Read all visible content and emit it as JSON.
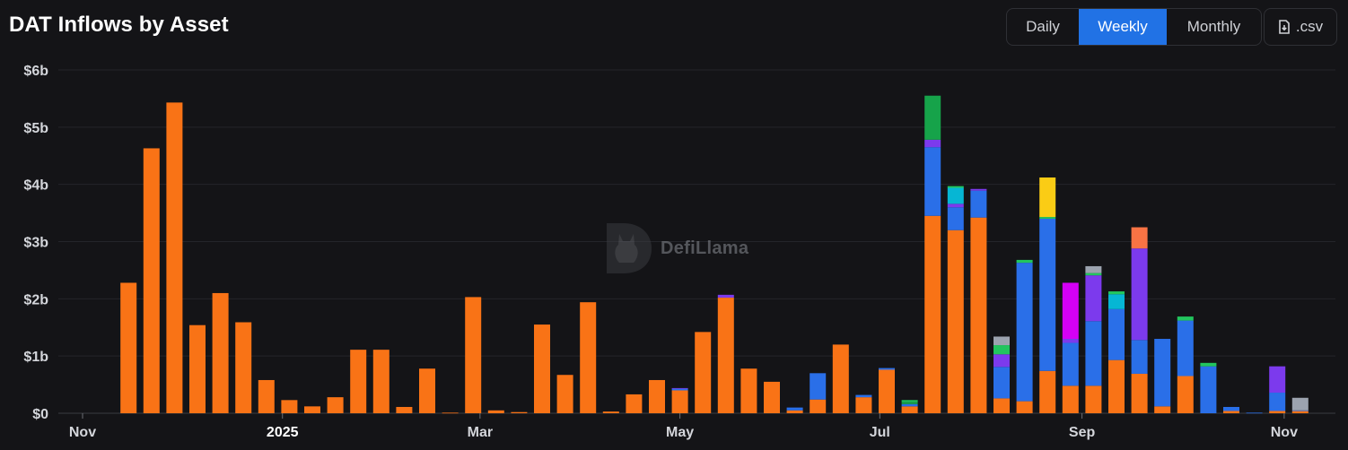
{
  "title": "DAT Inflows by Asset",
  "controls": {
    "daily_label": "Daily",
    "weekly_label": "Weekly",
    "monthly_label": "Monthly",
    "active": "Weekly",
    "csv_label": ".csv"
  },
  "watermark": "DefiLlama",
  "colors": {
    "background": "#141417",
    "accent": "#2172e5",
    "btc": "#f97316",
    "eth": "#2a6fe8",
    "sol": "#7c3aed",
    "teal": "#06b6d4",
    "green": "#16a34a",
    "lime": "#22c55e",
    "yellow": "#facc15",
    "magenta": "#d400f5",
    "coral": "#f97344",
    "gray": "#9ca3af"
  },
  "chart_data": {
    "type": "bar",
    "stacked": true,
    "title": "DAT Inflows by Asset",
    "y_unit": "$b",
    "ylim": [
      0,
      6
    ],
    "y_ticks": [
      "$0",
      "$1b",
      "$2b",
      "$3b",
      "$4b",
      "$5b",
      "$6b"
    ],
    "x_ticks": [
      {
        "label": "Nov",
        "bold": false,
        "week": 0
      },
      {
        "label": "2025",
        "bold": true,
        "week": 8.7
      },
      {
        "label": "Mar",
        "bold": false,
        "week": 17.3
      },
      {
        "label": "May",
        "bold": false,
        "week": 26
      },
      {
        "label": "Jul",
        "bold": false,
        "week": 34.7
      },
      {
        "label": "Sep",
        "bold": false,
        "week": 43.5
      },
      {
        "label": "Nov",
        "bold": false,
        "week": 52.3
      }
    ],
    "grid": true,
    "x": [
      "2024-11-03",
      "2024-11-10",
      "2024-11-17",
      "2024-11-24",
      "2024-12-01",
      "2024-12-08",
      "2024-12-15",
      "2024-12-22",
      "2024-12-29",
      "2025-01-05",
      "2025-01-12",
      "2025-01-19",
      "2025-01-26",
      "2025-02-02",
      "2025-02-09",
      "2025-02-16",
      "2025-02-23",
      "2025-03-02",
      "2025-03-09",
      "2025-03-16",
      "2025-03-23",
      "2025-03-30",
      "2025-04-06",
      "2025-04-13",
      "2025-04-20",
      "2025-04-27",
      "2025-05-04",
      "2025-05-11",
      "2025-05-18",
      "2025-05-25",
      "2025-06-01",
      "2025-06-08",
      "2025-06-15",
      "2025-06-22",
      "2025-06-29",
      "2025-07-06",
      "2025-07-13",
      "2025-07-20",
      "2025-07-27",
      "2025-08-03",
      "2025-08-10",
      "2025-08-17",
      "2025-08-24",
      "2025-08-31",
      "2025-09-07",
      "2025-09-14",
      "2025-09-21",
      "2025-09-28",
      "2025-10-05",
      "2025-10-12",
      "2025-10-19",
      "2025-10-26",
      "2025-11-02",
      "2025-11-09"
    ],
    "series": [
      {
        "color": "#f97316",
        "values": [
          0,
          0,
          2.28,
          4.63,
          5.43,
          1.54,
          2.1,
          1.59,
          0.58,
          0.23,
          0.12,
          0.28,
          1.11,
          1.11,
          0.11,
          0.78,
          0.01,
          2.03,
          0.05,
          0.02,
          1.55,
          0.67,
          1.94,
          0.03,
          0.33,
          0.58,
          0.4,
          1.42,
          2.02,
          0.78,
          0.55,
          0.05,
          0.24,
          1.2,
          0.28,
          0.76,
          0.12,
          3.45,
          3.2,
          3.42,
          0.26,
          0.21,
          0.74,
          0.48,
          0.48,
          0.93,
          0.69,
          0.12,
          0.65,
          0,
          0.04,
          0,
          0.04,
          0.04
        ]
      },
      {
        "color": "#2a6fe8",
        "values": [
          0,
          0,
          0,
          0,
          0,
          0,
          0,
          0,
          0,
          0,
          0,
          0,
          0,
          0,
          0,
          0,
          0,
          0,
          0,
          0,
          0,
          0,
          0,
          0,
          0,
          0,
          0.03,
          0,
          0,
          0,
          0,
          0.05,
          0.46,
          0,
          0.04,
          0.03,
          0.04,
          1.2,
          0.4,
          0.47,
          0.55,
          2.42,
          2.66,
          0.75,
          1.13,
          0.89,
          0.59,
          1.18,
          0.97,
          0.82,
          0.07,
          0.01,
          0.32,
          0.01
        ]
      },
      {
        "color": "#7c3aed",
        "values": [
          0,
          0,
          0,
          0,
          0,
          0,
          0,
          0,
          0,
          0,
          0,
          0,
          0,
          0,
          0,
          0,
          0,
          0,
          0,
          0,
          0,
          0,
          0,
          0,
          0,
          0,
          0.01,
          0,
          0.05,
          0,
          0,
          0,
          0,
          0,
          0,
          0,
          0,
          0.13,
          0.06,
          0.03,
          0.22,
          0,
          0,
          0.07,
          0.8,
          0,
          1.6,
          0,
          0,
          0,
          0,
          0,
          0.46,
          0
        ]
      },
      {
        "color": "#06b6d4",
        "values": [
          0,
          0,
          0,
          0,
          0,
          0,
          0,
          0,
          0,
          0,
          0,
          0,
          0,
          0,
          0,
          0,
          0,
          0,
          0,
          0,
          0,
          0,
          0,
          0,
          0,
          0,
          0,
          0,
          0,
          0,
          0,
          0,
          0,
          0,
          0,
          0,
          0,
          0,
          0.28,
          0,
          0,
          0,
          0,
          0,
          0,
          0.26,
          0,
          0,
          0,
          0,
          0,
          0,
          0,
          0
        ]
      },
      {
        "color": "#16a34a",
        "values": [
          0,
          0,
          0,
          0,
          0,
          0,
          0,
          0,
          0,
          0,
          0,
          0,
          0,
          0,
          0,
          0,
          0,
          0,
          0,
          0,
          0,
          0,
          0,
          0,
          0,
          0,
          0,
          0,
          0,
          0,
          0,
          0,
          0,
          0,
          0,
          0,
          0.04,
          0.77,
          0,
          0,
          0,
          0,
          0,
          0,
          0,
          0,
          0,
          0,
          0,
          0,
          0,
          0,
          0,
          0
        ]
      },
      {
        "color": "#22c55e",
        "values": [
          0,
          0,
          0,
          0,
          0,
          0,
          0,
          0,
          0,
          0,
          0,
          0,
          0,
          0,
          0,
          0,
          0,
          0,
          0,
          0,
          0,
          0,
          0,
          0,
          0,
          0,
          0,
          0,
          0,
          0,
          0,
          0,
          0,
          0,
          0,
          0,
          0.03,
          0,
          0.03,
          0,
          0.16,
          0.05,
          0.03,
          0,
          0.04,
          0.05,
          0,
          0,
          0.07,
          0.06,
          0,
          0,
          0,
          0
        ]
      },
      {
        "color": "#facc15",
        "values": [
          0,
          0,
          0,
          0,
          0,
          0,
          0,
          0,
          0,
          0,
          0,
          0,
          0,
          0,
          0,
          0,
          0,
          0,
          0,
          0,
          0,
          0,
          0,
          0,
          0,
          0,
          0,
          0,
          0,
          0,
          0,
          0,
          0,
          0,
          0,
          0,
          0,
          0,
          0,
          0,
          0,
          0,
          0.69,
          0,
          0,
          0,
          0,
          0,
          0,
          0,
          0,
          0,
          0,
          0
        ]
      },
      {
        "color": "#d400f5",
        "values": [
          0,
          0,
          0,
          0,
          0,
          0,
          0,
          0,
          0,
          0,
          0,
          0,
          0,
          0,
          0,
          0,
          0,
          0,
          0,
          0,
          0,
          0,
          0,
          0,
          0,
          0,
          0,
          0,
          0,
          0,
          0,
          0,
          0,
          0,
          0,
          0,
          0,
          0,
          0,
          0,
          0,
          0,
          0,
          0.98,
          0,
          0,
          0,
          0,
          0,
          0,
          0,
          0,
          0,
          0
        ]
      },
      {
        "color": "#f97344",
        "values": [
          0,
          0,
          0,
          0,
          0,
          0,
          0,
          0,
          0,
          0,
          0,
          0,
          0,
          0,
          0,
          0,
          0,
          0,
          0,
          0,
          0,
          0,
          0,
          0,
          0,
          0,
          0,
          0,
          0,
          0,
          0,
          0,
          0,
          0,
          0,
          0,
          0,
          0,
          0,
          0,
          0,
          0,
          0,
          0,
          0,
          0,
          0.37,
          0,
          0,
          0,
          0,
          0,
          0,
          0
        ]
      },
      {
        "color": "#9ca3af",
        "values": [
          0,
          0,
          0,
          0,
          0,
          0,
          0,
          0,
          0,
          0,
          0,
          0,
          0,
          0,
          0,
          0,
          0,
          0,
          0,
          0,
          0,
          0,
          0,
          0,
          0,
          0,
          0,
          0,
          0,
          0,
          0,
          0,
          0,
          0,
          0,
          0,
          0,
          0,
          0,
          0,
          0.15,
          0,
          0,
          0,
          0.12,
          0,
          0,
          0,
          0,
          0,
          0,
          0,
          0,
          0.22
        ]
      }
    ]
  }
}
